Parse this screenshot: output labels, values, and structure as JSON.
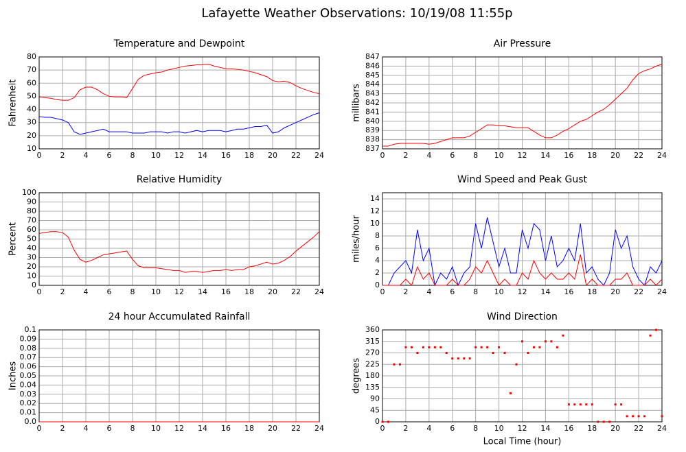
{
  "title": "Lafayette Weather Observations: 10/19/08 11:55p",
  "chart_data": [
    {
      "type": "line",
      "title": "Temperature and Dewpoint",
      "ylabel": "Fahrenheit",
      "x": [
        0,
        0.5,
        1,
        1.5,
        2,
        2.5,
        3,
        3.5,
        4,
        4.5,
        5,
        5.5,
        6,
        6.5,
        7,
        7.5,
        8,
        8.5,
        9,
        9.5,
        10,
        10.5,
        11,
        11.5,
        12,
        12.5,
        13,
        13.5,
        14,
        14.5,
        15,
        15.5,
        16,
        16.5,
        17,
        17.5,
        18,
        18.5,
        19,
        19.5,
        20,
        20.5,
        21,
        21.5,
        22,
        22.5,
        23,
        23.5,
        24
      ],
      "series": [
        {
          "color": "#ff0000",
          "values": [
            49.5,
            49,
            48.5,
            47.5,
            47,
            47,
            49,
            55,
            57,
            57,
            55,
            52,
            50,
            49.5,
            49.5,
            49,
            56,
            63,
            66,
            67,
            68,
            68.5,
            70,
            71,
            72,
            73,
            73.5,
            74,
            74,
            74.5,
            73,
            72,
            71,
            71,
            70.5,
            70,
            69,
            68,
            66.5,
            65,
            62,
            61,
            61.5,
            60.5,
            58,
            56,
            54.5,
            53,
            52
          ]
        },
        {
          "color": "#0000ff",
          "values": [
            34.5,
            34,
            34,
            33,
            32,
            30,
            23,
            21,
            22,
            23,
            24,
            25,
            23,
            23,
            23,
            23,
            22,
            22,
            22,
            23,
            23,
            23,
            22,
            23,
            23,
            22,
            23,
            24,
            23,
            24,
            24,
            24,
            23,
            24,
            25,
            25,
            26,
            27,
            27,
            28,
            22,
            23,
            26,
            28,
            30,
            32,
            34,
            36,
            37.5
          ]
        }
      ],
      "xlim": [
        0,
        24
      ],
      "ylim": [
        10,
        80
      ],
      "xticks": [
        0,
        2,
        4,
        6,
        8,
        10,
        12,
        14,
        16,
        18,
        20,
        22,
        24
      ],
      "yticks": [
        10,
        20,
        30,
        40,
        50,
        60,
        70,
        80
      ],
      "grid": true
    },
    {
      "type": "line",
      "title": "Air Pressure",
      "ylabel": "millibars",
      "x": [
        0,
        0.5,
        1,
        1.5,
        2,
        2.5,
        3,
        3.5,
        4,
        4.5,
        5,
        5.5,
        6,
        6.5,
        7,
        7.5,
        8,
        8.5,
        9,
        9.5,
        10,
        10.5,
        11,
        11.5,
        12,
        12.5,
        13,
        13.5,
        14,
        14.5,
        15,
        15.5,
        16,
        16.5,
        17,
        17.5,
        18,
        18.5,
        19,
        19.5,
        20,
        20.5,
        21,
        21.5,
        22,
        22.5,
        23,
        23.5,
        24
      ],
      "series": [
        {
          "color": "#ff0000",
          "values": [
            837.3,
            837.3,
            837.5,
            837.6,
            837.6,
            837.6,
            837.6,
            837.6,
            837.5,
            837.6,
            837.8,
            838,
            838.2,
            838.2,
            838.2,
            838.4,
            838.8,
            839.2,
            839.6,
            839.6,
            839.5,
            839.5,
            839.4,
            839.3,
            839.3,
            839.3,
            838.9,
            838.5,
            838.2,
            838.2,
            838.5,
            838.9,
            839.2,
            839.6,
            840,
            840.2,
            840.6,
            841,
            841.3,
            841.8,
            842.4,
            843,
            843.6,
            844.5,
            845.2,
            845.5,
            845.7,
            846,
            846.2
          ]
        }
      ],
      "xlim": [
        0,
        24
      ],
      "ylim": [
        837,
        847
      ],
      "xticks": [
        0,
        2,
        4,
        6,
        8,
        10,
        12,
        14,
        16,
        18,
        20,
        22,
        24
      ],
      "yticks": [
        837,
        838,
        839,
        840,
        841,
        842,
        843,
        844,
        845,
        846,
        847
      ],
      "grid": true
    },
    {
      "type": "line",
      "title": "Relative Humidity",
      "ylabel": "Percent",
      "x": [
        0,
        0.5,
        1,
        1.5,
        2,
        2.5,
        3,
        3.5,
        4,
        4.5,
        5,
        5.5,
        6,
        6.5,
        7,
        7.5,
        8,
        8.5,
        9,
        9.5,
        10,
        10.5,
        11,
        11.5,
        12,
        12.5,
        13,
        13.5,
        14,
        14.5,
        15,
        15.5,
        16,
        16.5,
        17,
        17.5,
        18,
        18.5,
        19,
        19.5,
        20,
        20.5,
        21,
        21.5,
        22,
        22.5,
        23,
        23.5,
        24
      ],
      "series": [
        {
          "color": "#ff0000",
          "values": [
            56,
            57,
            58,
            58,
            57,
            52,
            38,
            28,
            25,
            27,
            30,
            33,
            34,
            35,
            36,
            37,
            28,
            21,
            19,
            19,
            19,
            18,
            17,
            16,
            16,
            14,
            15,
            15,
            14,
            15,
            16,
            16,
            17,
            16,
            17,
            17,
            20,
            21,
            23,
            25,
            23,
            24,
            27,
            31,
            37,
            42,
            47,
            52,
            58
          ]
        }
      ],
      "xlim": [
        0,
        24
      ],
      "ylim": [
        0,
        100
      ],
      "xticks": [
        0,
        2,
        4,
        6,
        8,
        10,
        12,
        14,
        16,
        18,
        20,
        22,
        24
      ],
      "yticks": [
        0,
        10,
        20,
        30,
        40,
        50,
        60,
        70,
        80,
        90,
        100
      ],
      "grid": true
    },
    {
      "type": "line",
      "title": "Wind Speed and Peak Gust",
      "ylabel": "miles/hour",
      "x": [
        0,
        0.5,
        1,
        1.5,
        2,
        2.5,
        3,
        3.5,
        4,
        4.5,
        5,
        5.5,
        6,
        6.5,
        7,
        7.5,
        8,
        8.5,
        9,
        9.5,
        10,
        10.5,
        11,
        11.5,
        12,
        12.5,
        13,
        13.5,
        14,
        14.5,
        15,
        15.5,
        16,
        16.5,
        17,
        17.5,
        18,
        18.5,
        19,
        19.5,
        20,
        20.5,
        21,
        21.5,
        22,
        22.5,
        23,
        23.5,
        24
      ],
      "series": [
        {
          "color": "#0000ff",
          "values": [
            0,
            0,
            2,
            3,
            4,
            2,
            9,
            4,
            6,
            0,
            2,
            1,
            3,
            0,
            2,
            3,
            10,
            6,
            11,
            7,
            3,
            6,
            2,
            2,
            9,
            6,
            10,
            9,
            4,
            8,
            3,
            4,
            6,
            4,
            10,
            2,
            3,
            1,
            0,
            2,
            9,
            6,
            8,
            3,
            1,
            0,
            3,
            2,
            4
          ]
        },
        {
          "color": "#ff0000",
          "values": [
            0,
            0,
            0,
            0,
            1,
            0,
            3,
            1,
            2,
            0,
            0,
            0,
            1,
            0,
            0,
            1,
            3,
            2,
            4,
            2,
            0,
            1,
            0,
            0,
            2,
            1,
            4,
            2,
            1,
            2,
            1,
            1,
            2,
            1,
            5,
            0,
            1,
            0,
            0,
            0,
            1,
            1,
            2,
            0,
            0,
            0,
            1,
            0,
            1
          ]
        }
      ],
      "xlim": [
        0,
        24
      ],
      "ylim": [
        0,
        15
      ],
      "xticks": [
        0,
        2,
        4,
        6,
        8,
        10,
        12,
        14,
        16,
        18,
        20,
        22,
        24
      ],
      "yticks": [
        0,
        2,
        4,
        6,
        8,
        10,
        12,
        14
      ],
      "grid": true
    },
    {
      "type": "line",
      "title": "24 hour Accumulated Rainfall",
      "ylabel": "Inches",
      "x": [
        0,
        24
      ],
      "series": [
        {
          "color": "#ff0000",
          "values": [
            0,
            0
          ]
        }
      ],
      "xlim": [
        0,
        24
      ],
      "ylim": [
        0,
        0.1
      ],
      "xticks": [
        0,
        2,
        4,
        6,
        8,
        10,
        12,
        14,
        16,
        18,
        20,
        22,
        24
      ],
      "yticks": [
        {
          "value": 0,
          "label": "0.0"
        },
        0.01,
        0.02,
        0.03,
        0.04,
        0.05,
        0.06,
        0.07,
        0.08,
        0.09,
        0.1
      ],
      "grid": true
    },
    {
      "type": "scatter",
      "title": "Wind Direction",
      "ylabel": "degrees",
      "xlabel": "Local Time (hour)",
      "x": [
        0,
        0.5,
        1,
        1.5,
        2,
        2.5,
        3,
        3.5,
        4,
        4.5,
        5,
        5.5,
        6,
        6.5,
        7,
        7.5,
        8,
        8.5,
        9,
        9.5,
        10,
        10.5,
        11,
        11.5,
        12,
        12.5,
        13,
        13.5,
        14,
        14.5,
        15,
        15.5,
        16,
        16.5,
        17,
        17.5,
        18,
        18.5,
        19,
        19.5,
        20,
        20.5,
        21,
        21.5,
        22,
        22.5,
        23,
        23.5,
        24
      ],
      "series": [
        {
          "color": "#ff0000",
          "values": [
            0,
            0,
            225,
            225,
            292,
            292,
            270,
            292,
            292,
            292,
            292,
            270,
            248,
            248,
            248,
            248,
            292,
            292,
            292,
            270,
            292,
            270,
            112,
            225,
            315,
            270,
            292,
            292,
            315,
            315,
            292,
            338,
            68,
            68,
            68,
            68,
            68,
            0,
            0,
            0,
            68,
            68,
            22,
            22,
            22,
            22,
            338,
            360,
            22
          ]
        }
      ],
      "xlim": [
        0,
        24
      ],
      "ylim": [
        0,
        360
      ],
      "xticks": [
        0,
        2,
        4,
        6,
        8,
        10,
        12,
        14,
        16,
        18,
        20,
        22,
        24
      ],
      "yticks": [
        0,
        45,
        90,
        135,
        180,
        225,
        270,
        315,
        360
      ],
      "grid": true
    }
  ]
}
